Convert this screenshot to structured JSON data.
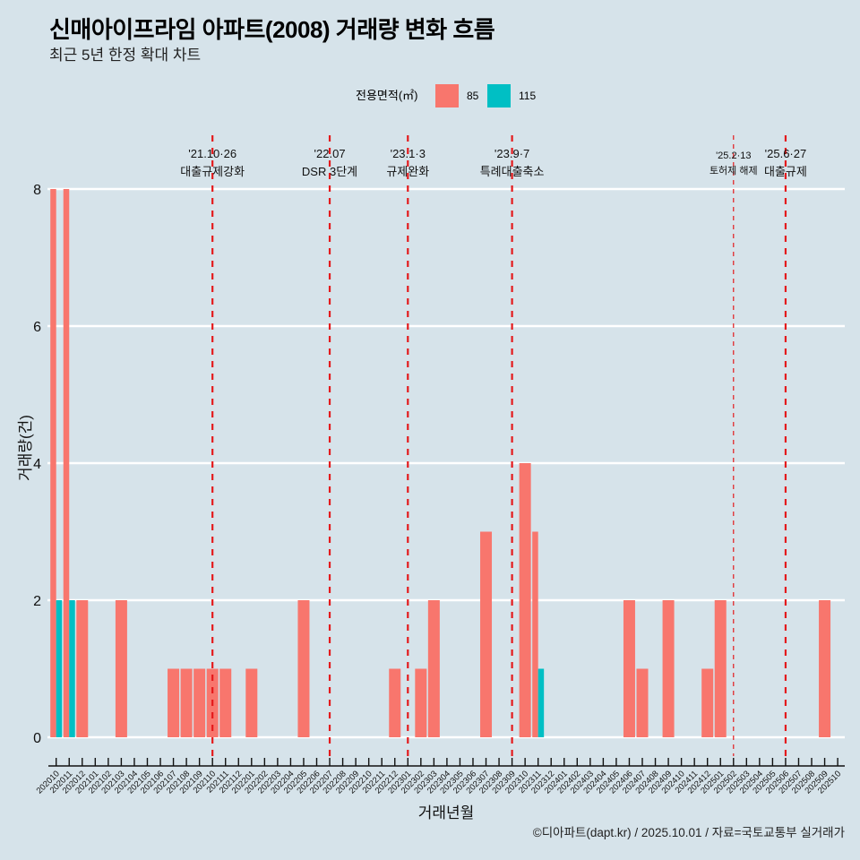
{
  "chart_data": {
    "type": "bar",
    "title": "신매아이프라임 아파트(2008) 거래량 변화 흐름",
    "subtitle": "최근 5년 한정 확대 차트",
    "xlabel": "거래년월",
    "ylabel": "거래량(건)",
    "ylim": [
      0,
      8
    ],
    "yticks": [
      0,
      2,
      4,
      6,
      8
    ],
    "grid": true,
    "bar_position": "dodge",
    "legend_position": "top",
    "legend": {
      "title": "전용면적(㎡)"
    },
    "caption": "©디아파트(dapt.kr) / 2025.10.01 / 자료=국토교통부 실거래가",
    "categories": [
      "202010",
      "202011",
      "202012",
      "202101",
      "202102",
      "202103",
      "202104",
      "202105",
      "202106",
      "202107",
      "202108",
      "202109",
      "202110",
      "202111",
      "202112",
      "202201",
      "202202",
      "202203",
      "202204",
      "202205",
      "202206",
      "202207",
      "202208",
      "202209",
      "202210",
      "202211",
      "202212",
      "202301",
      "202302",
      "202303",
      "202304",
      "202305",
      "202306",
      "202307",
      "202308",
      "202309",
      "202310",
      "202311",
      "202312",
      "202401",
      "202402",
      "202403",
      "202404",
      "202405",
      "202406",
      "202407",
      "202408",
      "202409",
      "202410",
      "202411",
      "202412",
      "202501",
      "202502",
      "202503",
      "202504",
      "202505",
      "202506",
      "202507",
      "202508",
      "202509",
      "202510"
    ],
    "series": [
      {
        "name": "85",
        "color": "#F8766D",
        "values": [
          8,
          8,
          2,
          0,
          0,
          2,
          0,
          0,
          0,
          1,
          1,
          1,
          1,
          1,
          0,
          1,
          0,
          0,
          0,
          2,
          0,
          0,
          0,
          0,
          0,
          0,
          1,
          0,
          1,
          2,
          0,
          0,
          0,
          3,
          0,
          0,
          4,
          3,
          0,
          0,
          0,
          0,
          0,
          0,
          2,
          1,
          0,
          2,
          0,
          0,
          1,
          2,
          0,
          0,
          0,
          0,
          0,
          0,
          0,
          2,
          0
        ]
      },
      {
        "name": "115",
        "color": "#00BFC4",
        "values": [
          2,
          2,
          0,
          0,
          0,
          0,
          0,
          0,
          0,
          0,
          0,
          0,
          0,
          0,
          0,
          0,
          0,
          0,
          0,
          0,
          0,
          0,
          0,
          0,
          0,
          0,
          0,
          0,
          0,
          0,
          0,
          0,
          0,
          0,
          0,
          0,
          0,
          1,
          0,
          0,
          0,
          0,
          0,
          0,
          0,
          0,
          0,
          0,
          0,
          0,
          0,
          0,
          0,
          0,
          0,
          0,
          0,
          0,
          0,
          0,
          0
        ]
      }
    ],
    "annotations": [
      {
        "x": "202110",
        "date": "'21.10·26",
        "label": "대출규제강화",
        "color": "#E41A1C",
        "minor": false
      },
      {
        "x": "202207",
        "date": "'22.07",
        "label": "DSR 3단계",
        "color": "#E41A1C",
        "minor": false
      },
      {
        "x": "202301",
        "date": "'23.1·3",
        "label": "규제완화",
        "color": "#E41A1C",
        "minor": false
      },
      {
        "x": "202309",
        "date": "'23.9·7",
        "label": "특례대출축소",
        "color": "#E41A1C",
        "minor": false
      },
      {
        "x": "202502",
        "date": "'25.2·13",
        "label": "토허제 해제",
        "color": "#E41A1C",
        "minor": true
      },
      {
        "x": "202506",
        "date": "'25.6·27",
        "label": "대출규제",
        "color": "#E41A1C",
        "minor": false
      }
    ]
  }
}
